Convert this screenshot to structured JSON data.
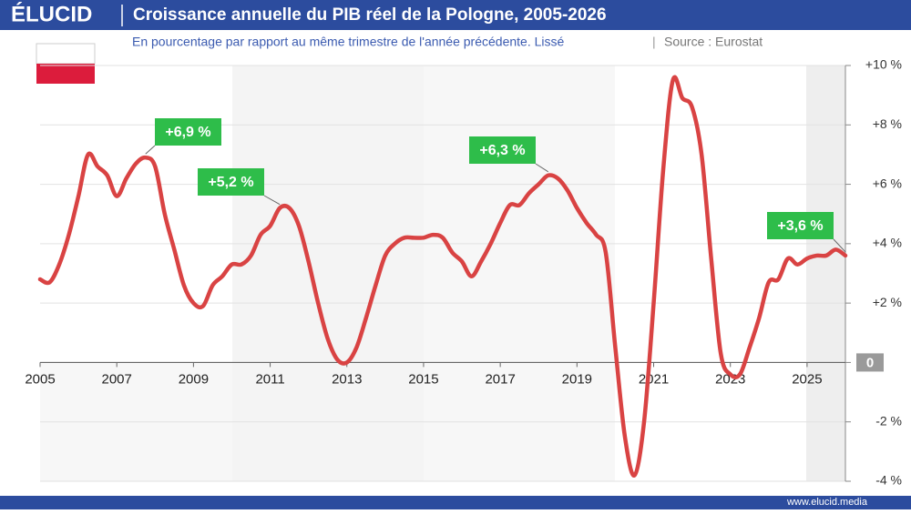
{
  "brand": "ÉLUCID",
  "footer": "www.elucid.media",
  "chart_data": {
    "type": "line",
    "title": "Croissance annuelle du PIB réel de la Pologne, 2005-2026",
    "subtitle": "En pourcentage par rapport au même trimestre de l'année précédente. Lissé",
    "source": "Source : Eurostat",
    "color": "#d94343",
    "x": [
      2005,
      2005.25,
      2005.5,
      2005.75,
      2006,
      2006.25,
      2006.5,
      2006.75,
      2007,
      2007.25,
      2007.5,
      2007.75,
      2008,
      2008.25,
      2008.5,
      2008.75,
      2009,
      2009.25,
      2009.5,
      2009.75,
      2010,
      2010.25,
      2010.5,
      2010.75,
      2011,
      2011.25,
      2011.5,
      2011.75,
      2012,
      2012.25,
      2012.5,
      2012.75,
      2013,
      2013.25,
      2013.5,
      2013.75,
      2014,
      2014.25,
      2014.5,
      2014.75,
      2015,
      2015.25,
      2015.5,
      2015.75,
      2016,
      2016.25,
      2016.5,
      2016.75,
      2017,
      2017.25,
      2017.5,
      2017.75,
      2018,
      2018.25,
      2018.5,
      2018.75,
      2019,
      2019.25,
      2019.5,
      2019.75,
      2020,
      2020.25,
      2020.5,
      2020.75,
      2021,
      2021.25,
      2021.5,
      2021.75,
      2022,
      2022.25,
      2022.5,
      2022.75,
      2023,
      2023.25,
      2023.5,
      2023.75,
      2024,
      2024.25,
      2024.5,
      2024.75,
      2025,
      2025.25,
      2025.5,
      2025.75,
      2026
    ],
    "values": [
      2.8,
      2.7,
      3.3,
      4.3,
      5.6,
      7.0,
      6.6,
      6.3,
      5.6,
      6.2,
      6.7,
      6.9,
      6.6,
      5.0,
      3.8,
      2.6,
      2.0,
      1.9,
      2.6,
      2.9,
      3.3,
      3.3,
      3.6,
      4.3,
      4.6,
      5.2,
      5.2,
      4.6,
      3.4,
      2.0,
      0.8,
      0.1,
      0.0,
      0.5,
      1.5,
      2.6,
      3.6,
      4.0,
      4.2,
      4.2,
      4.2,
      4.3,
      4.2,
      3.7,
      3.4,
      2.9,
      3.4,
      4.0,
      4.7,
      5.3,
      5.3,
      5.7,
      6.0,
      6.3,
      6.2,
      5.8,
      5.2,
      4.7,
      4.3,
      3.7,
      0.5,
      -2.5,
      -3.8,
      -2.0,
      2.0,
      6.5,
      9.5,
      8.9,
      8.6,
      7.0,
      3.5,
      0.3,
      -0.4,
      -0.4,
      0.5,
      1.5,
      2.7,
      2.8,
      3.5,
      3.3,
      3.5,
      3.6,
      3.6,
      3.8,
      3.6
    ],
    "xlim": [
      2005,
      2026
    ],
    "xticks": [
      2005,
      2007,
      2009,
      2011,
      2013,
      2015,
      2017,
      2019,
      2021,
      2023,
      2025
    ],
    "ylim": [
      -4,
      10
    ],
    "yticks": [
      {
        "value": -4,
        "label": "-4 %"
      },
      {
        "value": -2,
        "label": "-2 %"
      },
      0,
      {
        "value": 2,
        "label": "+2 %"
      },
      {
        "value": 4,
        "label": "+4 %"
      },
      {
        "value": 6,
        "label": "+6 %"
      },
      {
        "value": 8,
        "label": "+8 %"
      },
      {
        "value": 10,
        "label": "+10 %"
      }
    ],
    "grid": true,
    "annotations": [
      {
        "label": "+6,9 %",
        "x": 2007.75,
        "value": 6.9
      },
      {
        "label": "+5,2 %",
        "x": 2011.25,
        "value": 5.2
      },
      {
        "label": "+6,3 %",
        "x": 2018.25,
        "value": 6.3
      },
      {
        "label": "+3,6 %",
        "x": 2026,
        "value": 3.6
      }
    ]
  }
}
